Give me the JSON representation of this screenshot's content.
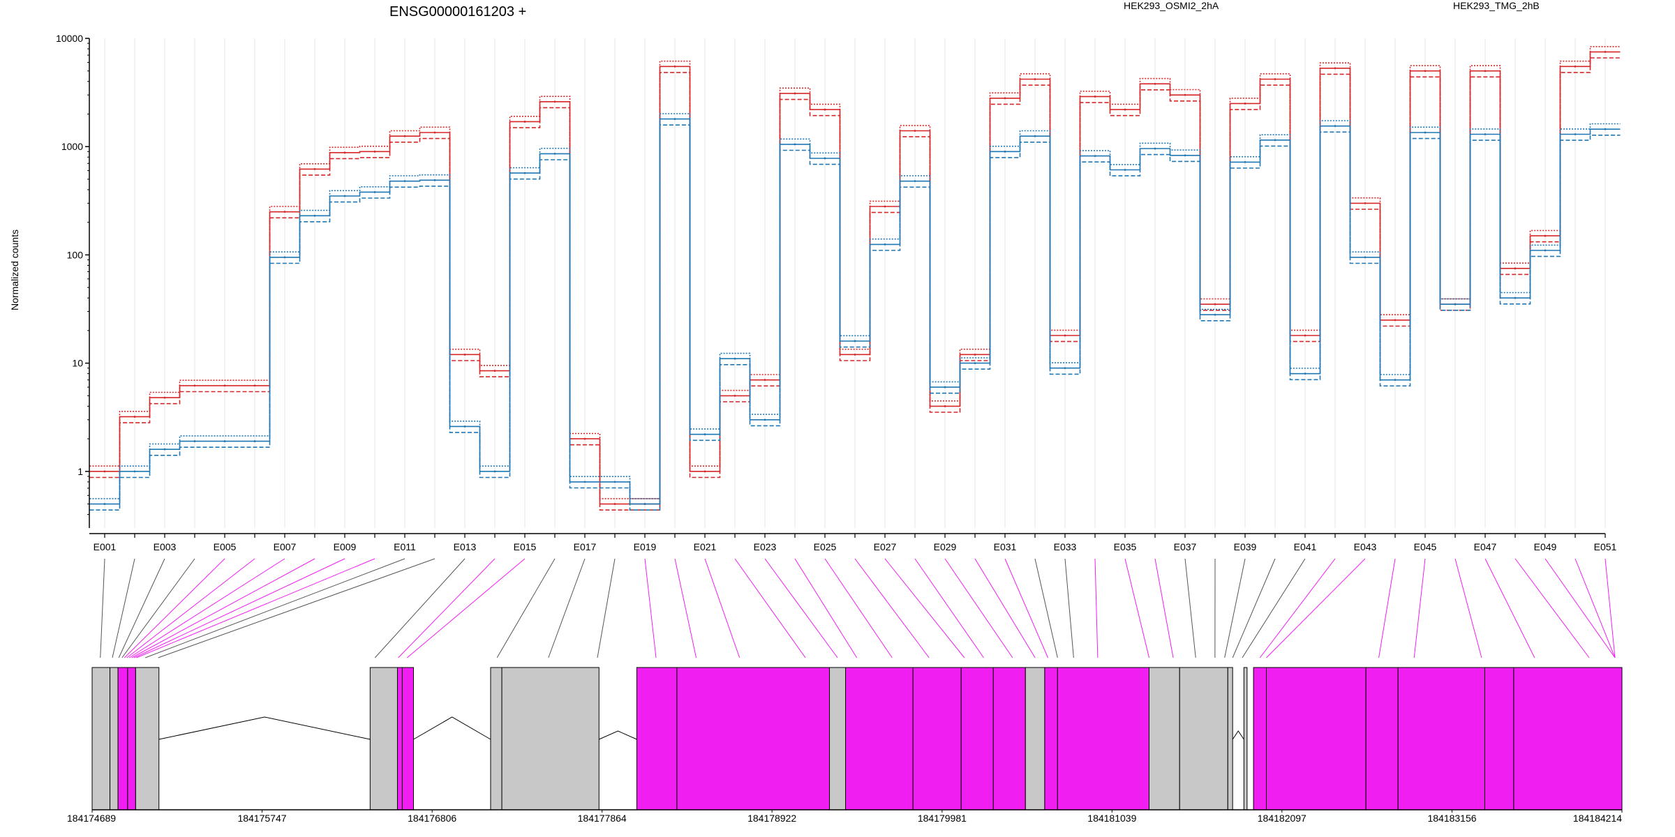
{
  "chart_data": {
    "type": "line",
    "title": "ENSG00000161203 +",
    "ylabel": "Normalized counts",
    "yscale": "log",
    "ylim": [
      0.3,
      10000
    ],
    "yticks": [
      1,
      10,
      100,
      1000,
      10000
    ],
    "ytick_labels": [
      "1",
      "10",
      "100",
      "1000",
      "10000"
    ],
    "grid": "vertical",
    "legend_placement": "top",
    "colors": {
      "condition_a": "#d62728",
      "condition_b": "#1f77b4",
      "exon_highlight": "#f01ef0",
      "exon_plain": "#c8c8c8",
      "connector_plain": "#555555"
    },
    "exons": [
      "E001",
      "E002",
      "E003",
      "E004",
      "E005",
      "E006",
      "E007",
      "E008",
      "E009",
      "E010",
      "E011",
      "E012",
      "E013",
      "E014",
      "E015",
      "E016",
      "E017",
      "E018",
      "E019",
      "E020",
      "E021",
      "E022",
      "E023",
      "E024",
      "E025",
      "E026",
      "E027",
      "E028",
      "E029",
      "E030",
      "E031",
      "E032",
      "E033",
      "E034",
      "E035",
      "E036",
      "E037",
      "E038",
      "E039",
      "E040",
      "E041",
      "E042",
      "E043",
      "E044",
      "E045",
      "E046",
      "E047",
      "E048",
      "E049",
      "E050",
      "E051"
    ],
    "series": [
      {
        "name": "HEK293_OSMI2_2hA",
        "condition": "a",
        "values": [
          1,
          3.2,
          4.8,
          6.2,
          6.2,
          6.2,
          250,
          620,
          880,
          900,
          1250,
          1350,
          12,
          8.5,
          1700,
          2600,
          2,
          0.5,
          0.5,
          5500,
          1,
          5,
          7,
          3100,
          2200,
          12,
          280,
          1400,
          4,
          12,
          2800,
          4200,
          18,
          2900,
          2200,
          3800,
          3000,
          35,
          2500,
          4200,
          18,
          5300,
          300,
          25,
          5000,
          35,
          5000,
          75,
          150,
          5500,
          7500
        ]
      },
      {
        "name": "HEK293_TMG_2hB",
        "condition": "b",
        "values": [
          0.5,
          1,
          1.6,
          1.9,
          1.9,
          1.9,
          95,
          230,
          350,
          380,
          480,
          490,
          2.6,
          1,
          570,
          860,
          0.8,
          0.8,
          0.5,
          1800,
          2.2,
          11,
          3,
          1050,
          780,
          16,
          125,
          480,
          6,
          10,
          900,
          1250,
          9,
          820,
          610,
          960,
          830,
          28,
          720,
          1150,
          8,
          1550,
          95,
          7,
          1350,
          35,
          1300,
          40,
          110,
          1300,
          1450
        ]
      }
    ],
    "genomic_axis": {
      "ticks": [
        "184174689",
        "184175747",
        "184176806",
        "184177864",
        "184178922",
        "184179981",
        "184181039",
        "184182097",
        "184183156",
        "184184214"
      ],
      "range": [
        184174689,
        184184214
      ]
    },
    "gene_model": {
      "exon_blocks": [
        {
          "start": 184174689,
          "end": 184174800,
          "highlighted": false
        },
        {
          "start": 184174800,
          "end": 184174850,
          "highlighted": false
        },
        {
          "start": 184174850,
          "end": 184174910,
          "highlighted": true
        },
        {
          "start": 184174910,
          "end": 184174960,
          "highlighted": true
        },
        {
          "start": 184174960,
          "end": 184175105,
          "highlighted": false
        },
        {
          "start": 184176420,
          "end": 184176590,
          "highlighted": false
        },
        {
          "start": 184176590,
          "end": 184176620,
          "highlighted": true
        },
        {
          "start": 184176620,
          "end": 184176690,
          "highlighted": true
        },
        {
          "start": 184177170,
          "end": 184177240,
          "highlighted": false
        },
        {
          "start": 184177240,
          "end": 184177845,
          "highlighted": false
        },
        {
          "start": 184178080,
          "end": 184178330,
          "highlighted": true
        },
        {
          "start": 184178330,
          "end": 184179280,
          "highlighted": true
        },
        {
          "start": 184179280,
          "end": 184179380,
          "highlighted": false
        },
        {
          "start": 184179380,
          "end": 184179800,
          "highlighted": true
        },
        {
          "start": 184179800,
          "end": 184180100,
          "highlighted": true
        },
        {
          "start": 184180100,
          "end": 184180300,
          "highlighted": true
        },
        {
          "start": 184180300,
          "end": 184180500,
          "highlighted": true
        },
        {
          "start": 184180500,
          "end": 184180620,
          "highlighted": false
        },
        {
          "start": 184180620,
          "end": 184180700,
          "highlighted": true
        },
        {
          "start": 184180700,
          "end": 184181270,
          "highlighted": true
        },
        {
          "start": 184181270,
          "end": 184181460,
          "highlighted": false
        },
        {
          "start": 184181460,
          "end": 184181760,
          "highlighted": false
        },
        {
          "start": 184181760,
          "end": 184181790,
          "highlighted": false
        },
        {
          "start": 184181860,
          "end": 184181880,
          "highlighted": false
        },
        {
          "start": 184181920,
          "end": 184182000,
          "highlighted": true
        },
        {
          "start": 184182000,
          "end": 184182620,
          "highlighted": true
        },
        {
          "start": 184182620,
          "end": 184182820,
          "highlighted": true
        },
        {
          "start": 184182820,
          "end": 184183360,
          "highlighted": true
        },
        {
          "start": 184183360,
          "end": 184183540,
          "highlighted": true
        },
        {
          "start": 184183540,
          "end": 184184214,
          "highlighted": true
        }
      ],
      "introns": [
        {
          "start": 184175105,
          "end": 184176420
        },
        {
          "start": 184176690,
          "end": 184177170
        },
        {
          "start": 184177845,
          "end": 184178080
        },
        {
          "start": 184181790,
          "end": 184181860
        }
      ]
    },
    "exon_connectors": [
      184174740,
      184174815,
      184174855,
      184174875,
      184174890,
      184174905,
      184174920,
      184174935,
      184174950,
      184174965,
      184175020,
      184175100,
      184176450,
      184176595,
      184176650,
      184177210,
      184177530,
      184177835,
      184178200,
      184178450,
      184178720,
      184179130,
      184179330,
      184179450,
      184179670,
      184179900,
      184180120,
      184180240,
      184180420,
      184180560,
      184180640,
      184180700,
      184180800,
      184180950,
      184181270,
      184181420,
      184181560,
      184181680,
      184181740,
      184181790,
      184181850,
      184181960,
      184182000,
      184182700,
      184182920,
      184183340,
      184183670,
      184184010,
      184184214,
      184184214,
      184184214
    ],
    "exon_connector_highlighted": [
      false,
      false,
      false,
      false,
      true,
      true,
      true,
      true,
      true,
      true,
      false,
      false,
      false,
      true,
      true,
      false,
      false,
      false,
      true,
      true,
      true,
      true,
      true,
      true,
      true,
      true,
      true,
      true,
      true,
      true,
      true,
      false,
      false,
      true,
      true,
      true,
      false,
      false,
      false,
      false,
      false,
      true,
      true,
      true,
      true,
      true,
      true,
      true,
      true,
      true,
      true
    ]
  }
}
